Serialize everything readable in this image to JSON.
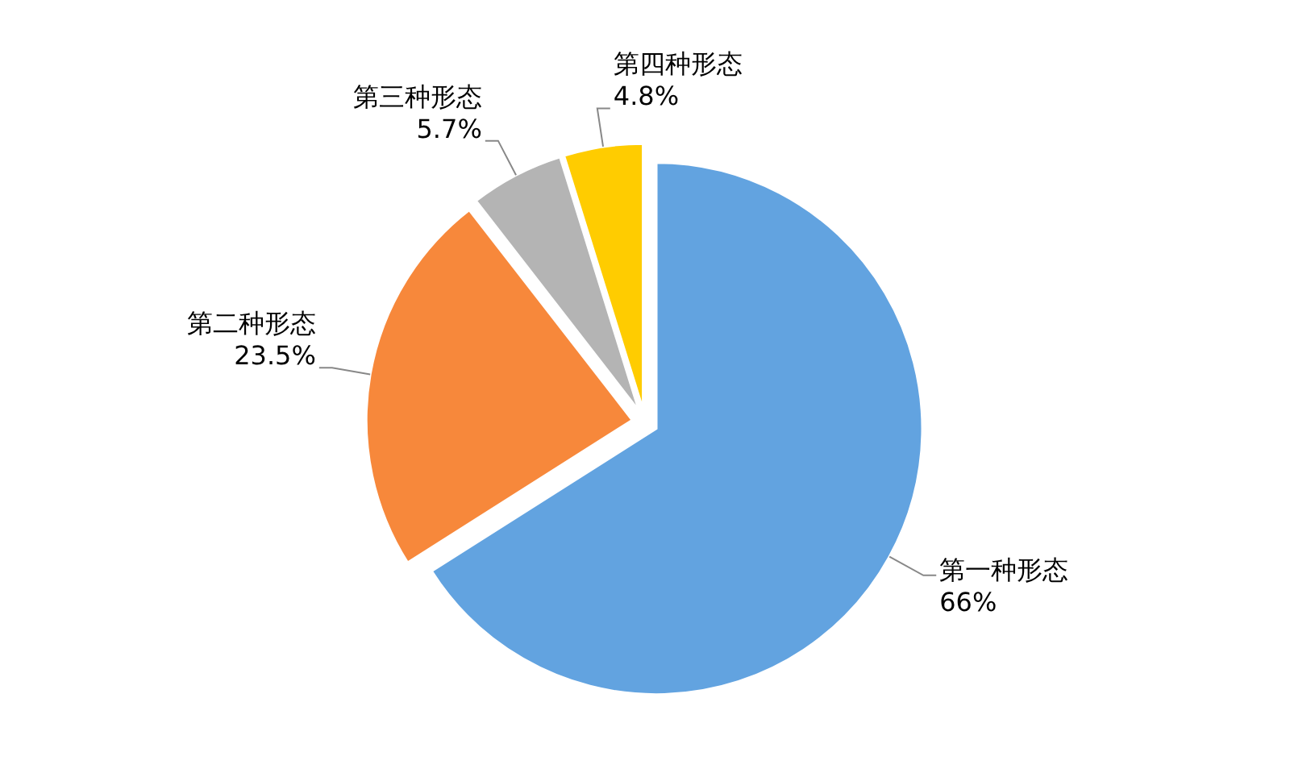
{
  "chart_data": {
    "type": "pie",
    "categories": [
      "第一种形态",
      "第二种形态",
      "第三种形态",
      "第四种形态"
    ],
    "values": [
      66,
      23.5,
      5.7,
      4.8
    ],
    "value_labels": [
      "66%",
      "23.5%",
      "5.7%",
      "4.8%"
    ],
    "colors": [
      "#62a3e0",
      "#f7883b",
      "#b4b4b4",
      "#ffcc00"
    ]
  }
}
